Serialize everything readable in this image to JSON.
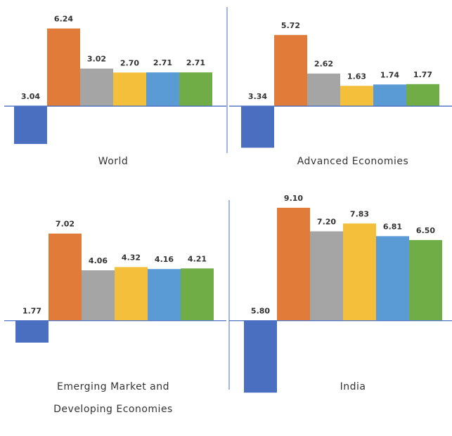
{
  "chart_data": [
    {
      "type": "bar",
      "title": "World",
      "values": [
        -3.04,
        6.24,
        3.02,
        2.7,
        2.71,
        2.71
      ],
      "value_labels": [
        "3.04",
        "6.24",
        "3.02",
        "2.70",
        "2.71",
        "2.71"
      ],
      "colors": [
        "#4a6fc0",
        "#e07b39",
        "#a5a5a5",
        "#f4bf3a",
        "#5b9bd5",
        "#70ad47"
      ],
      "ylim": [
        -3.6,
        7.4
      ]
    },
    {
      "type": "bar",
      "title": "Advanced Economies",
      "values": [
        -3.34,
        5.72,
        2.62,
        1.63,
        1.74,
        1.77
      ],
      "value_labels": [
        "3.34",
        "5.72",
        "2.62",
        "1.63",
        "1.74",
        "1.77"
      ],
      "colors": [
        "#4a6fc0",
        "#e07b39",
        "#a5a5a5",
        "#f4bf3a",
        "#5b9bd5",
        "#70ad47"
      ],
      "ylim": [
        -3.6,
        7.4
      ]
    },
    {
      "type": "bar",
      "title": "Emerging Market and Developing Economies",
      "values": [
        -1.77,
        7.02,
        4.06,
        4.32,
        4.16,
        4.21
      ],
      "value_labels": [
        "1.77",
        "7.02",
        "4.06",
        "4.32",
        "4.16",
        "4.21"
      ],
      "colors": [
        "#4a6fc0",
        "#e07b39",
        "#a5a5a5",
        "#f4bf3a",
        "#5b9bd5",
        "#70ad47"
      ],
      "ylim": [
        -5.9,
        10
      ]
    },
    {
      "type": "bar",
      "title": "India",
      "values": [
        -5.8,
        9.1,
        7.2,
        7.83,
        6.81,
        6.5
      ],
      "value_labels": [
        "5.80",
        "9.10",
        "7.20",
        "7.83",
        "6.81",
        "6.50"
      ],
      "colors": [
        "#4a6fc0",
        "#e07b39",
        "#a5a5a5",
        "#f4bf3a",
        "#5b9bd5",
        "#70ad47"
      ],
      "ylim": [
        -5.9,
        10
      ]
    }
  ]
}
